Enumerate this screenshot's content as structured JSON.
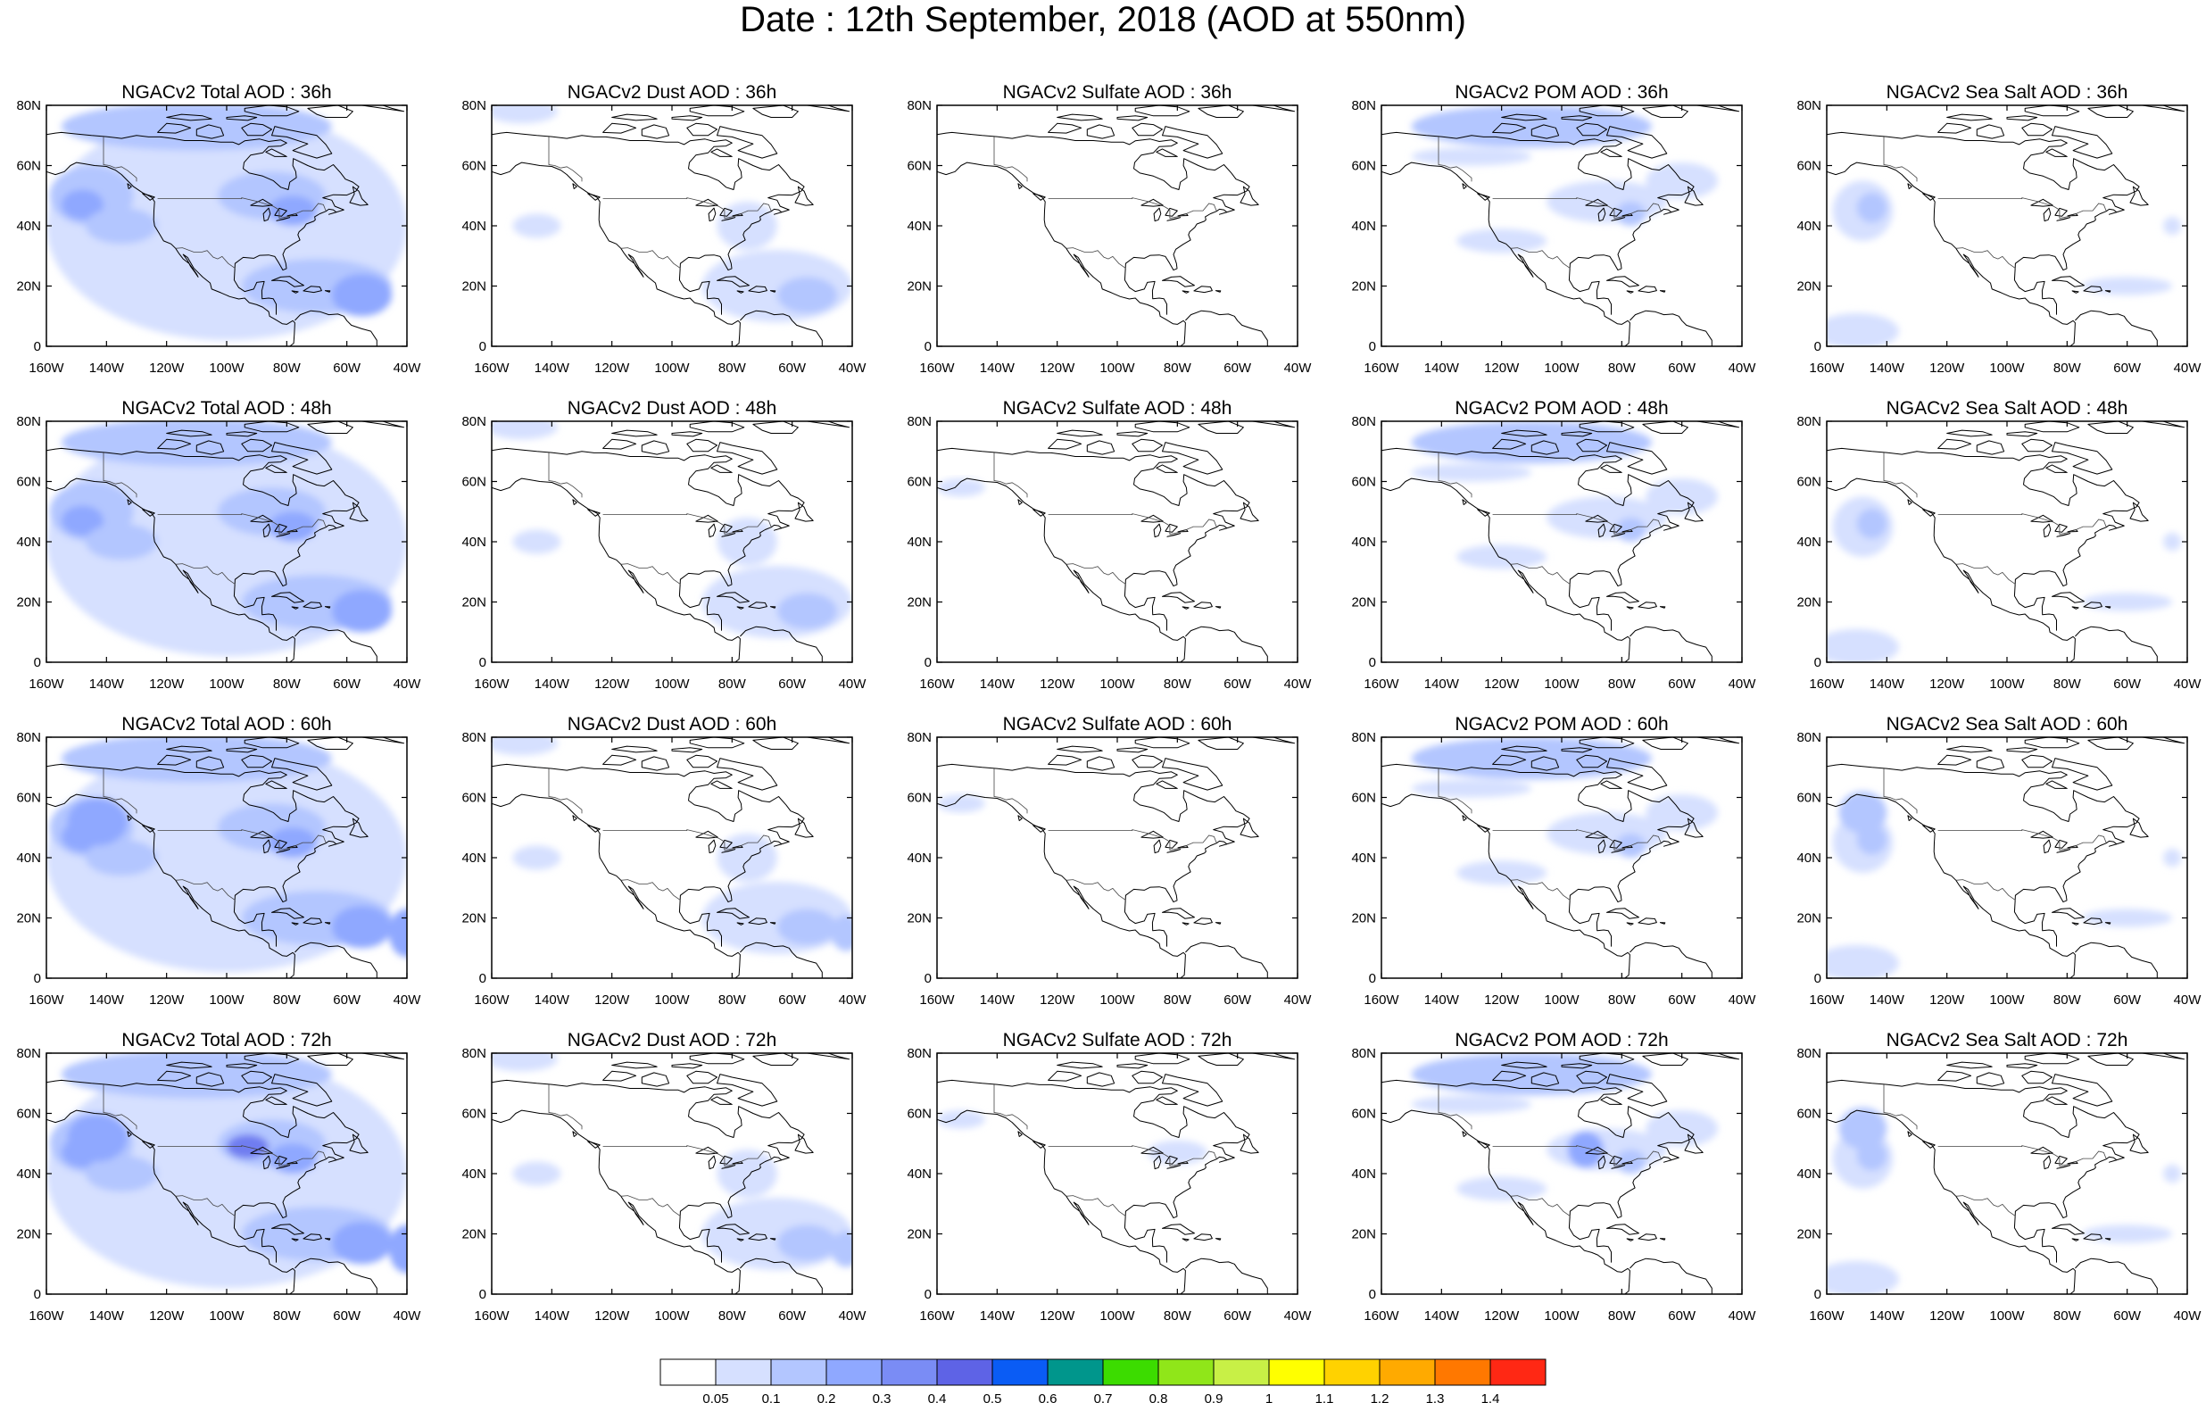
{
  "title": "Date : 12th September, 2018 (AOD at 550nm)",
  "panels": [
    [
      "NGACv2 Total AOD : 36h",
      "NGACv2 Dust AOD : 36h",
      "NGACv2 Sulfate AOD : 36h",
      "NGACv2 POM AOD : 36h",
      "NGACv2 Sea Salt AOD : 36h"
    ],
    [
      "NGACv2 Total AOD : 48h",
      "NGACv2 Dust AOD : 48h",
      "NGACv2 Sulfate AOD : 48h",
      "NGACv2 POM AOD : 48h",
      "NGACv2 Sea Salt AOD : 48h"
    ],
    [
      "NGACv2 Total AOD : 60h",
      "NGACv2 Dust AOD : 60h",
      "NGACv2 Sulfate AOD : 60h",
      "NGACv2 POM AOD : 60h",
      "NGACv2 Sea Salt AOD : 60h"
    ],
    [
      "NGACv2 Total AOD : 72h",
      "NGACv2 Dust AOD : 72h",
      "NGACv2 Sulfate AOD : 72h",
      "NGACv2 POM AOD : 72h",
      "NGACv2 Sea Salt  AOD : 72h"
    ]
  ],
  "y_ticks": [
    "80N",
    "60N",
    "40N",
    "20N",
    "0"
  ],
  "x_ticks": [
    "160W",
    "140W",
    "120W",
    "100W",
    "80W",
    "60W",
    "40W"
  ],
  "colorbar": {
    "labels": [
      "0.05",
      "0.1",
      "0.2",
      "0.3",
      "0.4",
      "0.5",
      "0.6",
      "0.7",
      "0.8",
      "0.9",
      "1",
      "1.1",
      "1.2",
      "1.3",
      "1.4"
    ],
    "colors": [
      "#ffffff",
      "#d6e0ff",
      "#b3c6ff",
      "#8fa8ff",
      "#7a8cf5",
      "#5e63e6",
      "#0a5cf5",
      "#00968c",
      "#3cdc00",
      "#90e619",
      "#c8f046",
      "#ffff00",
      "#ffd200",
      "#ffaa00",
      "#ff7800",
      "#ff2814"
    ]
  },
  "field_colors": {
    "light": "#d6e0ff",
    "medium": "#b3c6ff",
    "dark": "#8fa8ff",
    "darker": "#6f7df0",
    "hot_green": "#3cdc00"
  }
}
